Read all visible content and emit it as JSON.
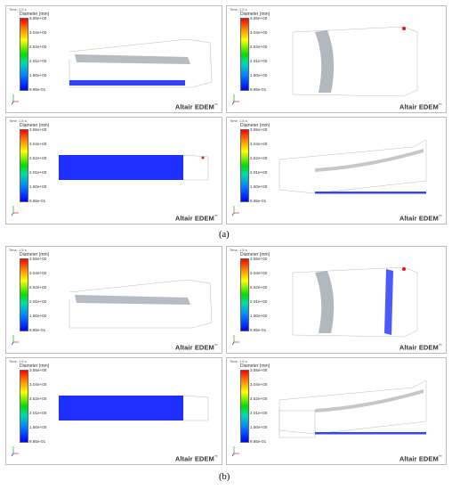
{
  "figure": {
    "part_labels": [
      "(a)",
      "(b)"
    ],
    "brand": "Altair EDEM",
    "brand_mark": "™",
    "time_label": "Time: 1.5 s",
    "legend": {
      "title": "Diameter (mm)",
      "values": [
        "3.55e+00",
        "3.04e+00",
        "2.52e+00",
        "2.01e+00",
        "1.50e+00",
        "9.85e-01"
      ]
    },
    "colors": {
      "small": "#1f2fff",
      "mid": "#22cc33",
      "large": "#ee1111",
      "geometry": "#a9b0b8"
    },
    "panels": [
      {
        "id": "a1",
        "view": "side-inclined"
      },
      {
        "id": "a2",
        "view": "perspective-cylinder"
      },
      {
        "id": "a3",
        "view": "top"
      },
      {
        "id": "a4",
        "view": "side-inclined-2"
      },
      {
        "id": "b1",
        "view": "side-inclined"
      },
      {
        "id": "b2",
        "view": "perspective-cylinder"
      },
      {
        "id": "b3",
        "view": "top"
      },
      {
        "id": "b4",
        "view": "side-inclined-2"
      }
    ]
  }
}
